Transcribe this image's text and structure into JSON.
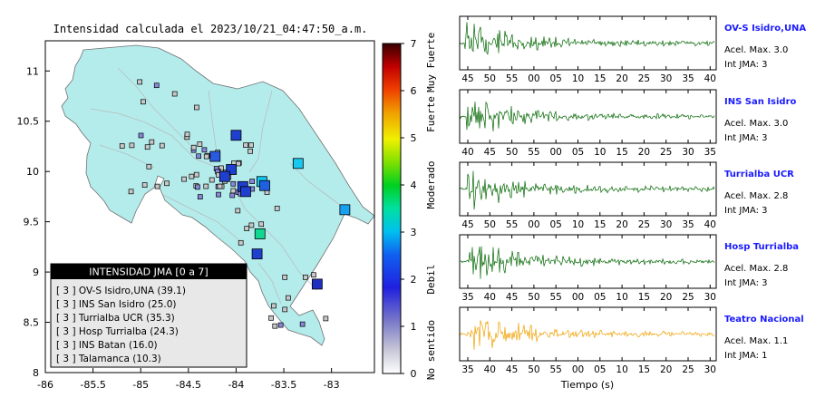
{
  "title": "Intensidad calculada el 2023/10/21_04:47:50_a.m.",
  "map": {
    "x_ticks": [
      "-86",
      "-85.5",
      "-85",
      "-84.5",
      "-84",
      "-83.5",
      "-83"
    ],
    "y_ticks": [
      "11",
      "10.5",
      "10",
      "9.5",
      "9",
      "8.5",
      "8"
    ],
    "lon_range": [
      -86,
      -82.55
    ],
    "lat_range": [
      8,
      11.3
    ],
    "legend": {
      "title": "INTENSIDAD JMA [0 a 7]",
      "rows": [
        "[ 3 ]  OV-S Isidro,UNA (39.1)",
        "[ 3 ]  INS San Isidro (25.0)",
        "[ 3 ]  Turrialba UCR (35.3)",
        "[ 3 ]  Hosp Turrialba (24.3)",
        "[ 3 ]  INS Batan (16.0)",
        "[ 3 ]  Talamanca (10.3)"
      ]
    }
  },
  "colorbar": {
    "ticks": [
      "0",
      "1",
      "2",
      "3",
      "4",
      "5",
      "6",
      "7"
    ],
    "labels": [
      "No sentido",
      "Debil",
      "Moderado",
      "Fuerte",
      "Muy Fuerte"
    ]
  },
  "waveforms": {
    "xlabel": "Tiempo (s)",
    "panels": [
      {
        "name": "OV-S Isidro,UNA",
        "acel": "Acel. Max. 3.0",
        "int": "Int JMA: 3",
        "color": "#006600",
        "ticks": [
          "45",
          "50",
          "55",
          "00",
          "05",
          "10",
          "15",
          "20",
          "25",
          "30",
          "35",
          "40"
        ]
      },
      {
        "name": "INS San Isidro",
        "acel": "Acel. Max. 3.0",
        "int": "Int JMA: 3",
        "color": "#006600",
        "ticks": [
          "40",
          "45",
          "50",
          "55",
          "00",
          "05",
          "10",
          "15",
          "20",
          "25",
          "30",
          "35"
        ]
      },
      {
        "name": "Turrialba UCR",
        "acel": "Acel. Max. 2.8",
        "int": "Int JMA: 3",
        "color": "#006600",
        "ticks": [
          "45",
          "50",
          "55",
          "00",
          "05",
          "10",
          "15",
          "20",
          "25",
          "30",
          "35",
          "40"
        ]
      },
      {
        "name": "Hosp Turrialba",
        "acel": "Acel. Max. 2.8",
        "int": "Int JMA: 3",
        "color": "#006600",
        "ticks": [
          "35",
          "40",
          "45",
          "50",
          "55",
          "00",
          "05",
          "10",
          "15",
          "20",
          "25",
          "30"
        ]
      },
      {
        "name": "Teatro Nacional",
        "acel": "Acel. Max. 1.1",
        "int": "Int JMA: 1",
        "color": "#f0a000",
        "ticks": [
          "35",
          "40",
          "45",
          "50",
          "55",
          "00",
          "05",
          "10",
          "15",
          "20",
          "25",
          "30"
        ]
      }
    ]
  },
  "chart_data": {
    "type": "scatter",
    "title": "Intensidad calculada el 2023/10/21_04:47:50_a.m.",
    "xlim": [
      -86,
      -82.55
    ],
    "ylim": [
      8,
      11.3
    ],
    "stations_large": [
      {
        "lon": -84.0,
        "lat": 10.36,
        "int": 2,
        "color": "#1f3fcf"
      },
      {
        "lon": -84.22,
        "lat": 10.15,
        "int": 2,
        "color": "#2a5ae0"
      },
      {
        "lon": -84.05,
        "lat": 10.02,
        "int": 2,
        "color": "#1f3fcf"
      },
      {
        "lon": -84.12,
        "lat": 9.95,
        "int": 2,
        "color": "#1f3fcf"
      },
      {
        "lon": -83.93,
        "lat": 9.85,
        "int": 2,
        "color": "#1f3fcf"
      },
      {
        "lon": -83.9,
        "lat": 9.8,
        "int": 2,
        "color": "#1f3fcf"
      },
      {
        "lon": -83.73,
        "lat": 9.9,
        "int": 3,
        "color": "#10c8f0"
      },
      {
        "lon": -83.7,
        "lat": 9.86,
        "int": 2,
        "color": "#1f5fe0"
      },
      {
        "lon": -83.35,
        "lat": 10.08,
        "int": 3,
        "color": "#18c8f0"
      },
      {
        "lon": -83.75,
        "lat": 9.38,
        "int": 3,
        "color": "#10d890"
      },
      {
        "lon": -83.78,
        "lat": 9.18,
        "int": 2,
        "color": "#1f3fcf"
      },
      {
        "lon": -82.86,
        "lat": 9.62,
        "int": 3,
        "color": "#18a0f0"
      },
      {
        "lon": -83.15,
        "lat": 8.88,
        "int": 2,
        "color": "#1f2fbf"
      }
    ],
    "stations_small_count": 80
  }
}
